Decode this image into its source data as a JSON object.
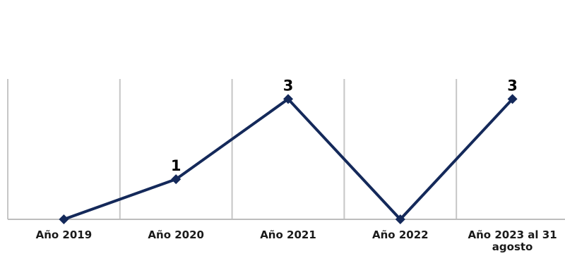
{
  "chart_data": {
    "type": "line",
    "categories": [
      "Año 2019",
      "Año 2020",
      "Año 2021",
      "Año 2022",
      "Año 2023 al 31 agosto"
    ],
    "series": [
      {
        "values": [
          0,
          1,
          3,
          0,
          3
        ]
      }
    ],
    "data_labels": [
      "",
      "1",
      "3",
      "",
      "3"
    ],
    "ylim": [
      0,
      3.5
    ],
    "grid": "vertical",
    "legend": "none",
    "colors": {
      "line": "#14295a",
      "grid": "#c6c6c6"
    }
  }
}
